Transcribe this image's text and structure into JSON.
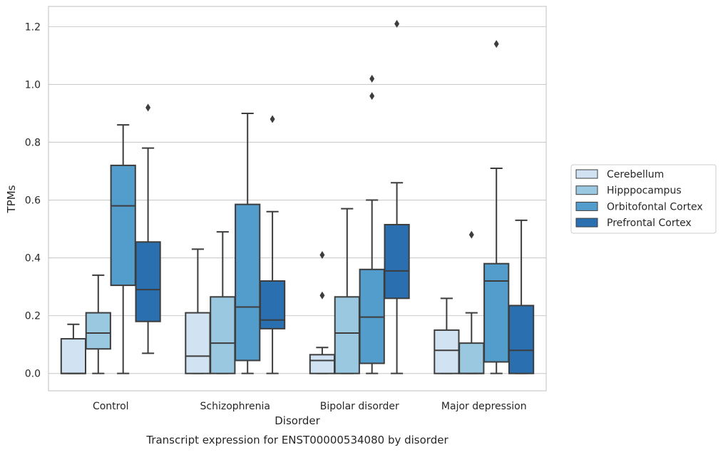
{
  "chart_data": {
    "type": "box",
    "title": "",
    "caption": "Transcript expression for ENST00000534080 by disorder",
    "xlabel": "Disorder",
    "ylabel": "TPMs",
    "categories": [
      "Control",
      "Schizophrenia",
      "Bipolar disorder",
      "Major depression"
    ],
    "ylim": [
      -0.06,
      1.27
    ],
    "yticks": [
      0.0,
      0.2,
      0.4,
      0.6,
      0.8,
      1.0,
      1.2
    ],
    "ytick_labels": [
      "0.0",
      "0.2",
      "0.4",
      "0.6",
      "0.8",
      "1.0",
      "1.2"
    ],
    "grid": true,
    "legend_position": "right",
    "series": [
      {
        "name": "Cerebellum",
        "color": "#d1e2f2",
        "boxes": [
          {
            "whisker_low": 0.0,
            "q1": 0.0,
            "median": 0.0,
            "q3": 0.12,
            "whisker_high": 0.17,
            "outliers": []
          },
          {
            "whisker_low": 0.0,
            "q1": 0.0,
            "median": 0.06,
            "q3": 0.21,
            "whisker_high": 0.43,
            "outliers": []
          },
          {
            "whisker_low": 0.0,
            "q1": 0.0,
            "median": 0.045,
            "q3": 0.065,
            "whisker_high": 0.09,
            "outliers": [
              0.27,
              0.41
            ]
          },
          {
            "whisker_low": 0.0,
            "q1": 0.0,
            "median": 0.08,
            "q3": 0.15,
            "whisker_high": 0.26,
            "outliers": []
          }
        ]
      },
      {
        "name": "Hipppocampus",
        "color": "#9ac8e0",
        "boxes": [
          {
            "whisker_low": 0.0,
            "q1": 0.085,
            "median": 0.14,
            "q3": 0.21,
            "whisker_high": 0.34,
            "outliers": []
          },
          {
            "whisker_low": 0.0,
            "q1": 0.0,
            "median": 0.105,
            "q3": 0.265,
            "whisker_high": 0.49,
            "outliers": []
          },
          {
            "whisker_low": 0.0,
            "q1": 0.0,
            "median": 0.14,
            "q3": 0.265,
            "whisker_high": 0.57,
            "outliers": []
          },
          {
            "whisker_low": 0.0,
            "q1": 0.0,
            "median": 0.0,
            "q3": 0.105,
            "whisker_high": 0.21,
            "outliers": [
              0.48
            ]
          }
        ]
      },
      {
        "name": "Orbitofontal Cortex",
        "color": "#529dcc",
        "boxes": [
          {
            "whisker_low": 0.0,
            "q1": 0.305,
            "median": 0.58,
            "q3": 0.72,
            "whisker_high": 0.86,
            "outliers": []
          },
          {
            "whisker_low": 0.0,
            "q1": 0.045,
            "median": 0.23,
            "q3": 0.585,
            "whisker_high": 0.9,
            "outliers": []
          },
          {
            "whisker_low": 0.0,
            "q1": 0.035,
            "median": 0.195,
            "q3": 0.36,
            "whisker_high": 0.6,
            "outliers": [
              0.96,
              1.02
            ]
          },
          {
            "whisker_low": 0.0,
            "q1": 0.04,
            "median": 0.32,
            "q3": 0.38,
            "whisker_high": 0.71,
            "outliers": [
              1.14
            ]
          }
        ]
      },
      {
        "name": "Prefrontal Cortex",
        "color": "#2a6fb0",
        "boxes": [
          {
            "whisker_low": 0.07,
            "q1": 0.18,
            "median": 0.29,
            "q3": 0.455,
            "whisker_high": 0.78,
            "outliers": [
              0.92
            ]
          },
          {
            "whisker_low": 0.0,
            "q1": 0.155,
            "median": 0.185,
            "q3": 0.32,
            "whisker_high": 0.56,
            "outliers": [
              0.88
            ]
          },
          {
            "whisker_low": 0.0,
            "q1": 0.26,
            "median": 0.355,
            "q3": 0.515,
            "whisker_high": 0.66,
            "outliers": [
              1.21
            ]
          },
          {
            "whisker_low": 0.0,
            "q1": 0.0,
            "median": 0.08,
            "q3": 0.235,
            "whisker_high": 0.53,
            "outliers": []
          }
        ]
      }
    ]
  }
}
